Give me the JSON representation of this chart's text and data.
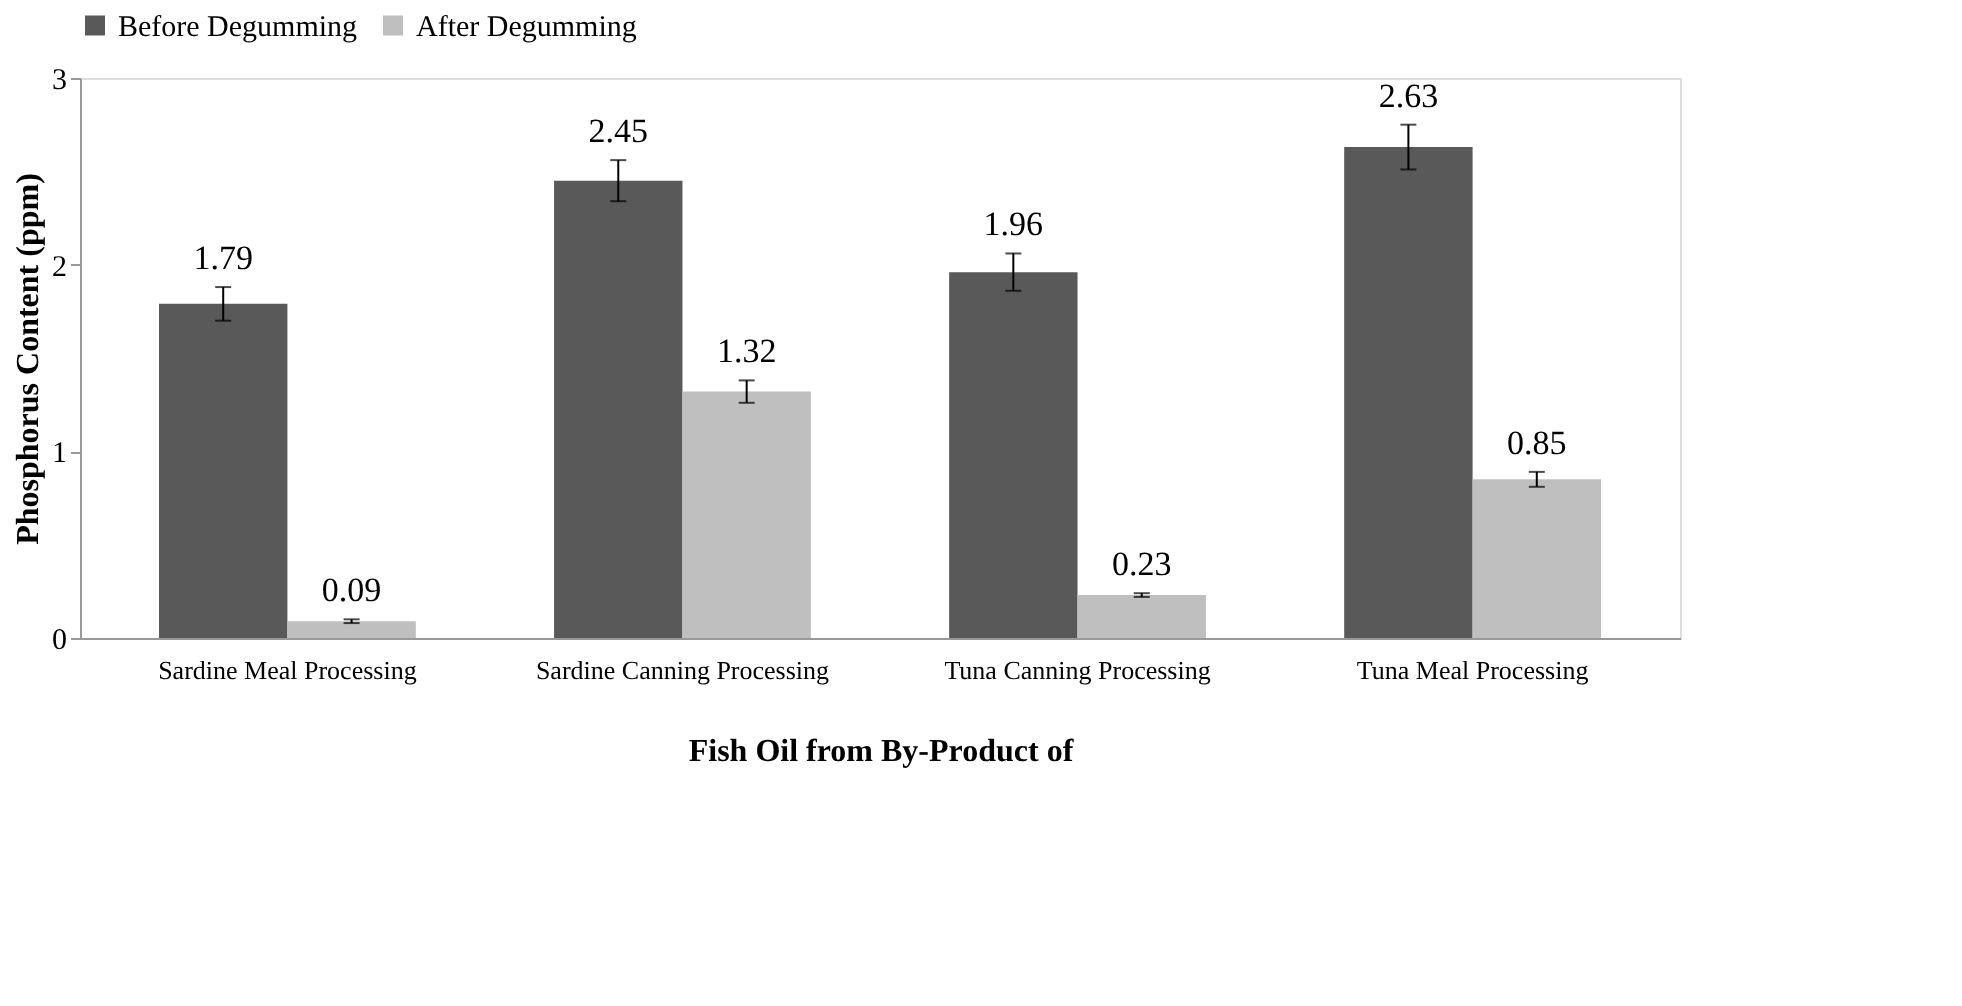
{
  "chart_data": {
    "type": "bar",
    "xlabel": "Fish Oil from By-Product of",
    "ylabel": "Phosphorus Content (ppm)",
    "categories": [
      "Sardine Meal Processing",
      "Sardine Canning Processing",
      "Tuna Canning Processing",
      "Tuna Meal Processing"
    ],
    "series": [
      {
        "name": "Before Degumming",
        "color": "#595959",
        "values": [
          1.79,
          2.45,
          1.96,
          2.63
        ],
        "errors": [
          0.09,
          0.11,
          0.1,
          0.12
        ]
      },
      {
        "name": "After Degumming",
        "color": "#bfbfbf",
        "values": [
          0.09,
          1.32,
          0.23,
          0.85
        ],
        "errors": [
          0.01,
          0.06,
          0.01,
          0.04
        ]
      }
    ],
    "ylim": [
      0,
      3
    ],
    "yticks": [
      0,
      1,
      2,
      3
    ],
    "grid": false,
    "legend": "top",
    "data_labels": true
  }
}
